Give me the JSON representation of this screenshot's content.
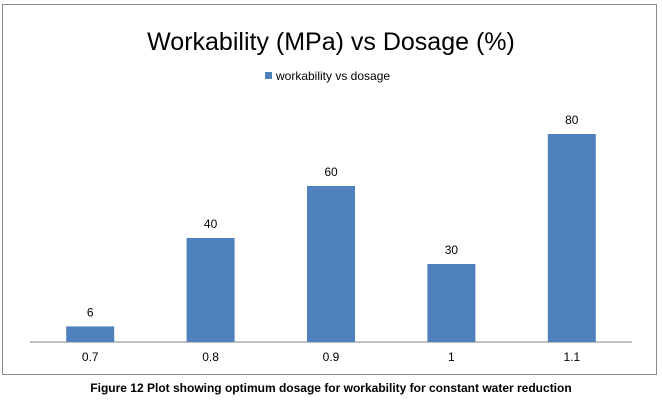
{
  "chart_data": {
    "type": "bar",
    "title": "Workability (MPa) vs Dosage (%)",
    "categories": [
      "0.7",
      "0.8",
      "0.9",
      "1",
      "1.1"
    ],
    "series": [
      {
        "name": "workability vs dosage",
        "values": [
          6,
          40,
          60,
          30,
          80
        ]
      }
    ],
    "xlabel": "",
    "ylabel": "",
    "ylim": [
      0,
      80
    ],
    "grid": false,
    "legend": "top-center",
    "show_y_axis": false,
    "data_labels": true,
    "bar_color": "#4f81bd"
  },
  "caption": "Figure 12 Plot showing optimum dosage for workability for constant water reduction"
}
